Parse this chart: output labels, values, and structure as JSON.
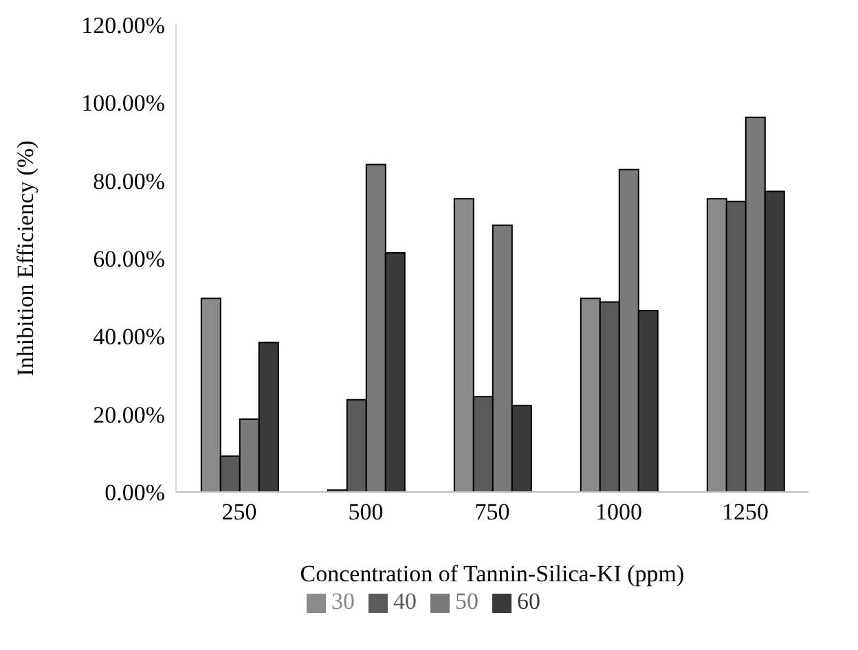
{
  "chart_data": {
    "type": "bar",
    "xlabel": "Concentration of Tannin-Silica-KI (ppm)",
    "ylabel": "Inhibition Efficiency (%)",
    "categories": [
      "250",
      "500",
      "750",
      "1000",
      "1250"
    ],
    "series": [
      {
        "name": "30",
        "color": "#8a8a8a",
        "values": [
          49.7,
          0.5,
          75.3,
          49.7,
          75.3
        ]
      },
      {
        "name": "40",
        "color": "#5a5a5a",
        "values": [
          9.2,
          23.7,
          24.5,
          48.8,
          74.6
        ]
      },
      {
        "name": "50",
        "color": "#7a7a7a",
        "values": [
          18.7,
          84.1,
          68.5,
          82.8,
          96.2
        ]
      },
      {
        "name": "60",
        "color": "#3a3a3a",
        "values": [
          38.4,
          61.4,
          22.2,
          46.6,
          77.2
        ]
      }
    ],
    "ylim": [
      0,
      120
    ],
    "yticks": [
      {
        "value": 0,
        "label": "0.00%"
      },
      {
        "value": 20,
        "label": "20.00%"
      },
      {
        "value": 40,
        "label": "40.00%"
      },
      {
        "value": 60,
        "label": "60.00%"
      },
      {
        "value": 80,
        "label": "80.00%"
      },
      {
        "value": 100,
        "label": "100.00%"
      },
      {
        "value": 120,
        "label": "120.00%"
      }
    ],
    "grid": false,
    "legend": "bottom"
  }
}
